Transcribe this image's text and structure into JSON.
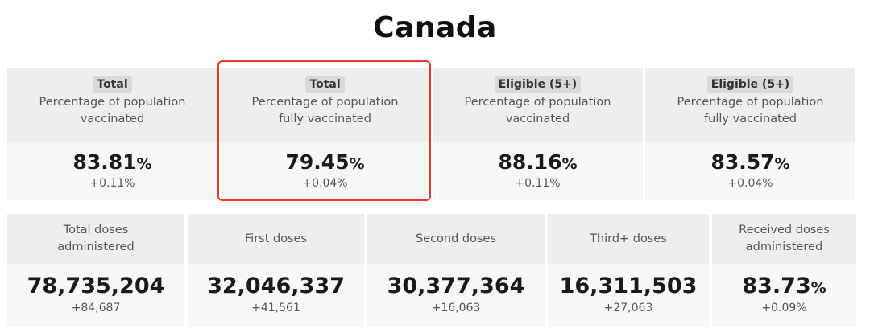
{
  "title": "Canada",
  "pct_cards": [
    {
      "tag": "Total",
      "desc1": "Percentage of population",
      "desc2": "vaccinated",
      "value": "83.81",
      "unit": "%",
      "delta": "+0.11%"
    },
    {
      "tag": "Total",
      "desc1": "Percentage of population",
      "desc2": "fully vaccinated",
      "value": "79.45",
      "unit": "%",
      "delta": "+0.04%"
    },
    {
      "tag": "Eligible (5+)",
      "desc1": "Percentage of population",
      "desc2": "vaccinated",
      "value": "88.16",
      "unit": "%",
      "delta": "+0.11%"
    },
    {
      "tag": "Eligible (5+)",
      "desc1": "Percentage of population",
      "desc2": "fully vaccinated",
      "value": "83.57",
      "unit": "%",
      "delta": "+0.04%"
    }
  ],
  "dose_cards": [
    {
      "label1": "Total doses",
      "label2": "administered",
      "value": "78,735,204",
      "unit": "",
      "delta": "+84,687"
    },
    {
      "label1": "First doses",
      "label2": "",
      "value": "32,046,337",
      "unit": "",
      "delta": "+41,561"
    },
    {
      "label1": "Second doses",
      "label2": "",
      "value": "30,377,364",
      "unit": "",
      "delta": "+16,063"
    },
    {
      "label1": "Third+ doses",
      "label2": "",
      "value": "16,311,503",
      "unit": "",
      "delta": "+27,063"
    },
    {
      "label1": "Received doses",
      "label2": "administered",
      "value": "83.73",
      "unit": "%",
      "delta": "+0.09%"
    }
  ],
  "highlight_color": "#e2392c"
}
